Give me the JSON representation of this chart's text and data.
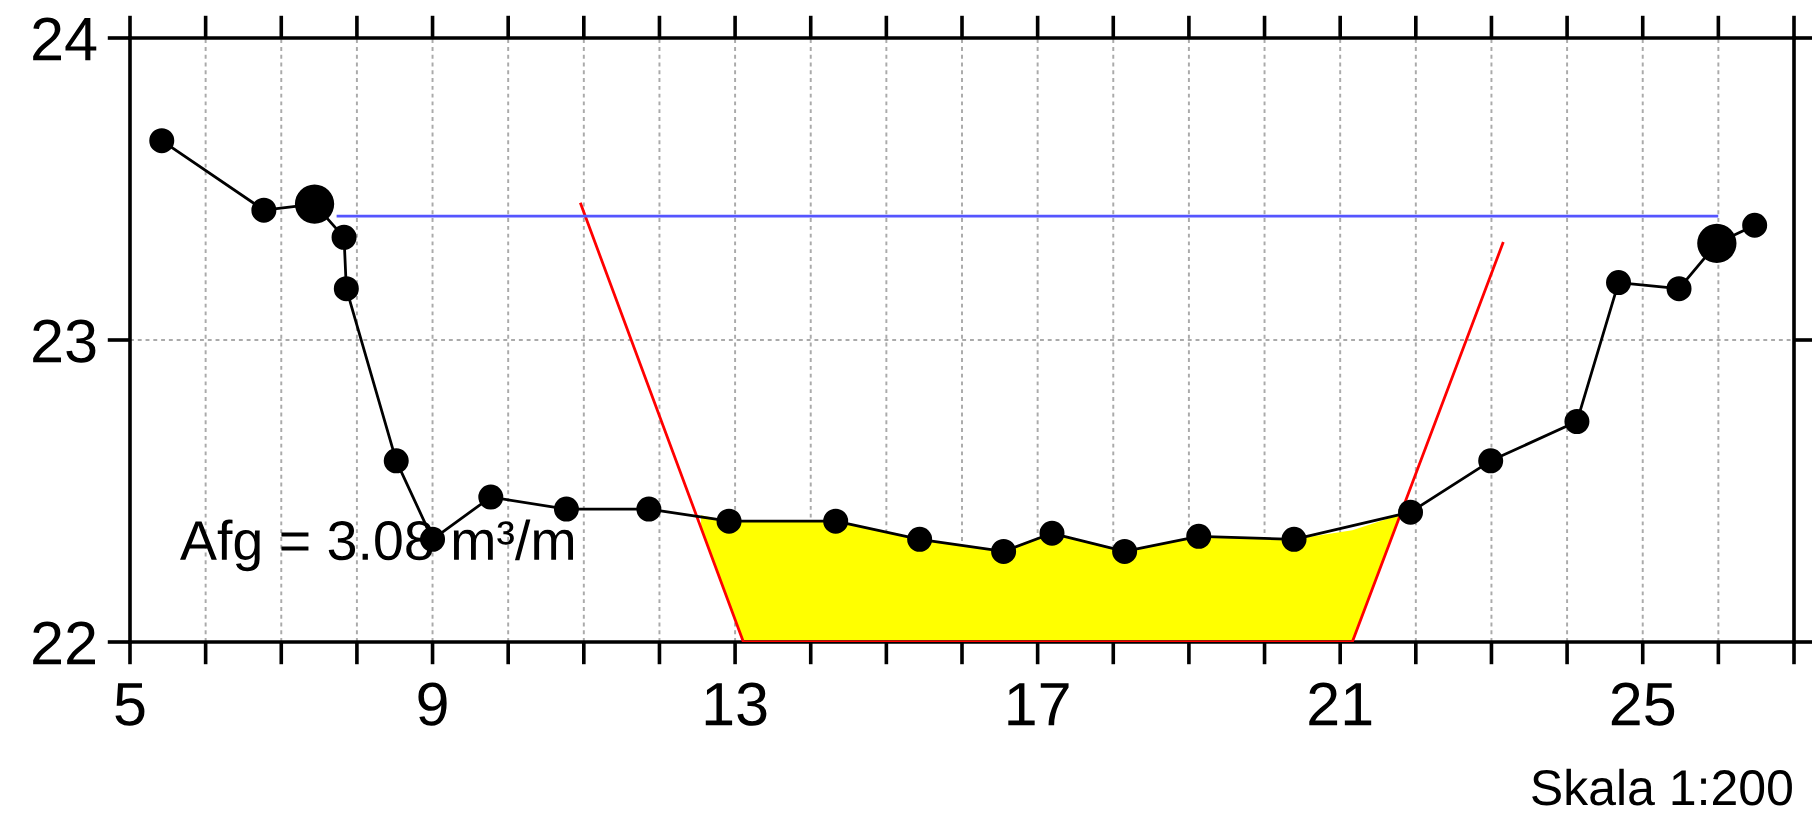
{
  "chart_data": {
    "type": "line",
    "xlim": [
      5,
      27
    ],
    "ylim": [
      22,
      24
    ],
    "xticks": [
      5,
      {
        "value": 6,
        "label": null
      },
      {
        "value": 7,
        "label": null
      },
      {
        "value": 8,
        "label": null
      },
      9,
      {
        "value": 10,
        "label": null
      },
      {
        "value": 11,
        "label": null
      },
      {
        "value": 12,
        "label": null
      },
      13,
      {
        "value": 14,
        "label": null
      },
      {
        "value": 15,
        "label": null
      },
      {
        "value": 16,
        "label": null
      },
      17,
      {
        "value": 18,
        "label": null
      },
      {
        "value": 19,
        "label": null
      },
      {
        "value": 20,
        "label": null
      },
      21,
      {
        "value": 22,
        "label": null
      },
      {
        "value": 23,
        "label": null
      },
      {
        "value": 24,
        "label": null
      },
      25,
      {
        "value": 26,
        "label": null
      },
      {
        "value": 27,
        "label": null
      }
    ],
    "yticks": [
      22,
      23,
      24
    ],
    "grid": true,
    "legend": false,
    "series": [
      {
        "type": "area",
        "color": "#ffff00",
        "x": [
          12.55,
          12.92,
          13.11,
          14.33,
          15.44,
          16.55,
          17.19,
          18.15,
          19.13,
          20.39,
          21.16,
          21.77
        ],
        "values": [
          22.42,
          22.4,
          22.4,
          22.4,
          22.34,
          22.3,
          22.36,
          22.3,
          22.35,
          22.34,
          22.37,
          22.42
        ]
      },
      {
        "type": "line",
        "color": "#ff0000",
        "x": [
          10.96,
          13.11,
          21.16,
          23.15
        ],
        "values": [
          23.45,
          22.0,
          22.0,
          23.32
        ]
      },
      {
        "type": "line",
        "color": "#5555ff",
        "x": [
          7.75,
          25.98
        ],
        "values": [
          23.41,
          23.41
        ]
      },
      {
        "color": "#000000",
        "marker": "circle",
        "x": [
          5.42,
          6.77,
          7.44,
          7.83,
          7.86,
          8.52,
          9.0,
          9.77,
          10.77,
          11.86,
          12.92,
          14.33,
          15.44,
          16.55,
          17.19,
          18.15,
          19.13,
          20.39,
          21.93,
          22.99,
          24.13,
          24.68,
          25.48,
          25.98,
          26.48
        ],
        "values": [
          23.66,
          23.43,
          23.45,
          23.34,
          23.17,
          22.6,
          22.34,
          22.48,
          22.44,
          22.44,
          22.4,
          22.4,
          22.34,
          22.3,
          22.36,
          22.3,
          22.35,
          22.34,
          22.43,
          22.6,
          22.73,
          23.19,
          23.17,
          23.32,
          23.38
        ]
      },
      {
        "type": "scatter",
        "color": "#000000",
        "marker": "circle",
        "x": [
          7.44,
          25.98
        ],
        "values": [
          23.45,
          23.32
        ]
      }
    ],
    "annotations": [
      "Afg = 3.08 m³/m",
      "Skala 1:200"
    ]
  }
}
